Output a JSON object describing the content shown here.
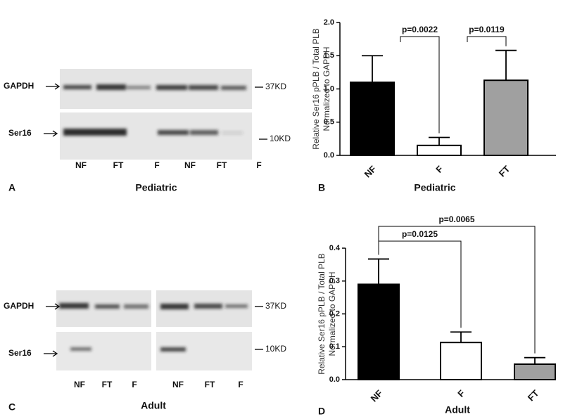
{
  "blots": [
    {
      "panel": "A",
      "title": "Pediatric",
      "rows": [
        "GAPDH",
        "Ser16"
      ],
      "markers": [
        "37KD",
        "10KD"
      ],
      "lanes": [
        "NF",
        "FT",
        "F",
        "NF",
        "FT",
        "F"
      ]
    },
    {
      "panel": "C",
      "title": "Adult",
      "rows": [
        "GAPDH",
        "Ser16"
      ],
      "markers": [
        "37KD",
        "10KD"
      ],
      "lanes": [
        "NF",
        "FT",
        "F",
        "NF",
        "FT",
        "F"
      ]
    }
  ],
  "chart_data": [
    {
      "type": "bar",
      "panel": "B",
      "xlabel": "Pediatric",
      "ylabel": [
        "Relative Ser16 pPLB / Total  PLB",
        "Normalized to GAPDH"
      ],
      "categories": [
        "NF",
        "F",
        "FT"
      ],
      "values": [
        1.1,
        0.15,
        1.13
      ],
      "errors": [
        0.4,
        0.12,
        0.45
      ],
      "colors": [
        "#000000",
        "#ffffff",
        "#a0a0a0"
      ],
      "ylim": [
        0,
        2
      ],
      "yticks": [
        {
          "value": 0,
          "label": "0.0"
        },
        {
          "value": 0.5,
          "label": "0.5"
        },
        {
          "value": 1,
          "label": "1.0"
        },
        {
          "value": 1.5,
          "label": "1.5"
        },
        {
          "value": 2,
          "label": "2.0"
        }
      ],
      "annotations": [
        "p=0.0022",
        "p=0.0119"
      ]
    },
    {
      "type": "bar",
      "panel": "D",
      "xlabel": "Adult",
      "ylabel": [
        "Relative Ser16 pPLB / Total  PLB",
        "Normalized to GAPDH"
      ],
      "categories": [
        "NF",
        "F",
        "FT"
      ],
      "values": [
        0.29,
        0.113,
        0.047
      ],
      "errors": [
        0.077,
        0.032,
        0.02
      ],
      "colors": [
        "#000000",
        "#ffffff",
        "#a0a0a0"
      ],
      "ylim": [
        0,
        0.4
      ],
      "yticks": [
        {
          "value": 0,
          "label": "0.0"
        },
        {
          "value": 0.1,
          "label": "0.1"
        },
        {
          "value": 0.2,
          "label": "0.2"
        },
        {
          "value": 0.3,
          "label": "0.3"
        },
        {
          "value": 0.4,
          "label": "0.4"
        }
      ],
      "annotations": [
        "p=0.0125",
        "p=0.0065"
      ]
    }
  ]
}
